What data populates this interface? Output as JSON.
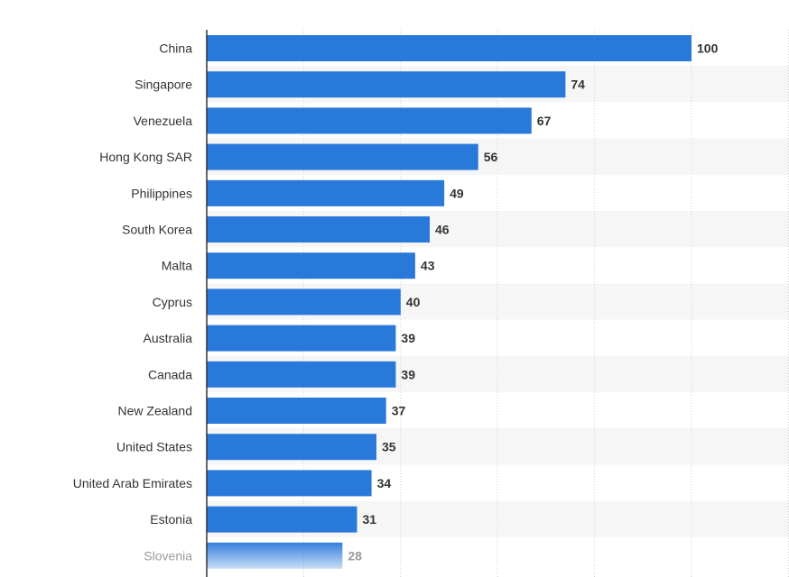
{
  "chart_data": {
    "type": "bar",
    "orientation": "horizontal",
    "categories": [
      "China",
      "Singapore",
      "Venezuela",
      "Hong Kong SAR",
      "Philippines",
      "South Korea",
      "Malta",
      "Cyprus",
      "Australia",
      "Canada",
      "New Zealand",
      "United States",
      "United Arab Emirates",
      "Estonia",
      "Slovenia"
    ],
    "values": [
      100,
      74,
      67,
      56,
      49,
      46,
      43,
      40,
      39,
      39,
      37,
      35,
      34,
      31,
      28
    ],
    "title": "",
    "xlabel": "",
    "ylabel": "",
    "xlim": [
      0,
      120
    ],
    "grid": true,
    "legend": "none",
    "colors": {
      "bar": "#2979db",
      "band": "#f6f6f6",
      "grid": "#d0d0d0",
      "axis": "#333333"
    }
  }
}
